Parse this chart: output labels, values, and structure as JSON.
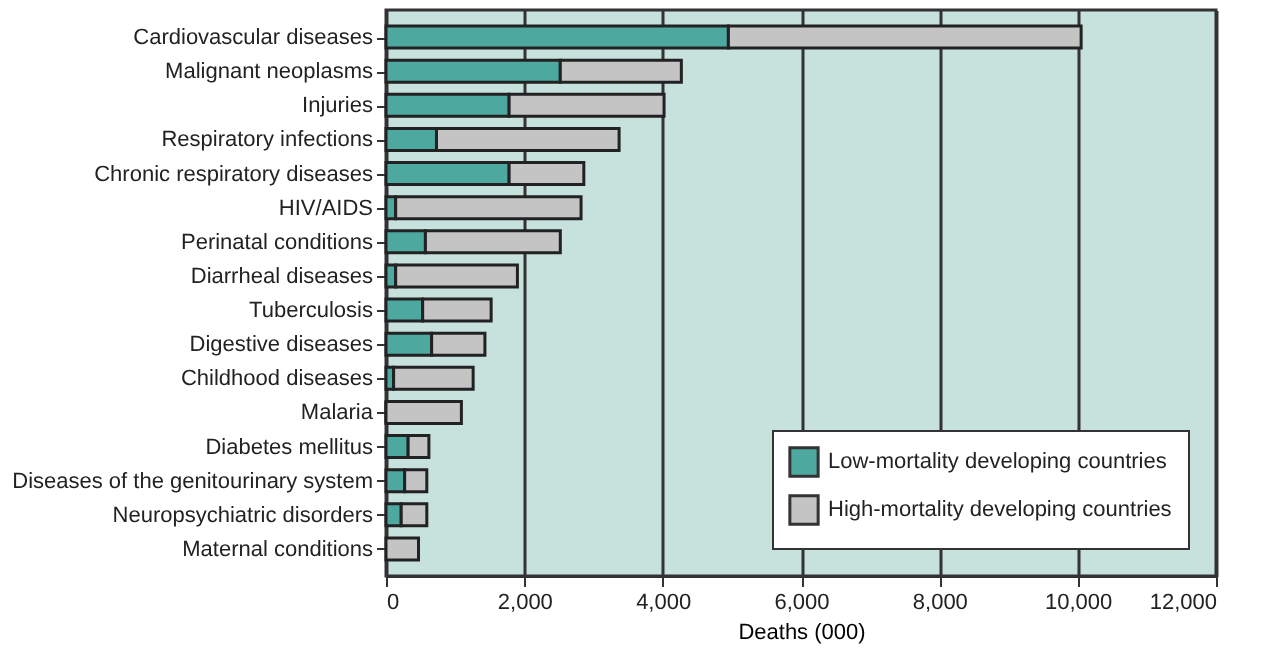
{
  "chart_data": {
    "type": "bar",
    "orientation": "horizontal",
    "stacked": true,
    "xlabel": "Deaths (000)",
    "categories": [
      "Cardiovascular diseases",
      "Malignant neoplasms",
      "Injuries",
      "Respiratory infections",
      "Chronic respiratory diseases",
      "HIV/AIDS",
      "Perinatal conditions",
      "Diarrheal diseases",
      "Tuberculosis",
      "Digestive diseases",
      "Childhood diseases",
      "Malaria",
      "Diabetes mellitus",
      "Diseases of the genitourinary system",
      "Neuropsychiatric disorders",
      "Maternal conditions"
    ],
    "series": [
      {
        "name": "Low-mortality developing countries",
        "color": "#4da8a0",
        "values": [
          4950,
          2520,
          1780,
          730,
          1780,
          140,
          570,
          140,
          530,
          660,
          110,
          0,
          320,
          270,
          220,
          null
        ]
      },
      {
        "name": "High-mortality developing countries",
        "color": "#c4c4c4",
        "values": [
          5100,
          1750,
          2240,
          2640,
          1080,
          2680,
          1950,
          1760,
          990,
          770,
          1150,
          1090,
          300,
          320,
          370,
          470
        ]
      }
    ],
    "xlim": [
      0,
      12000
    ],
    "xticks": [
      {
        "value": 0,
        "label": "0"
      },
      {
        "value": 2000,
        "label": "2,000"
      },
      {
        "value": 4000,
        "label": "4,000"
      },
      {
        "value": 6000,
        "label": "6,000"
      },
      {
        "value": 8000,
        "label": "8,000"
      },
      {
        "value": 10000,
        "label": "10,000"
      },
      {
        "value": 12000,
        "label": "12,000"
      }
    ],
    "grid": "x",
    "legend": "bottom right"
  }
}
